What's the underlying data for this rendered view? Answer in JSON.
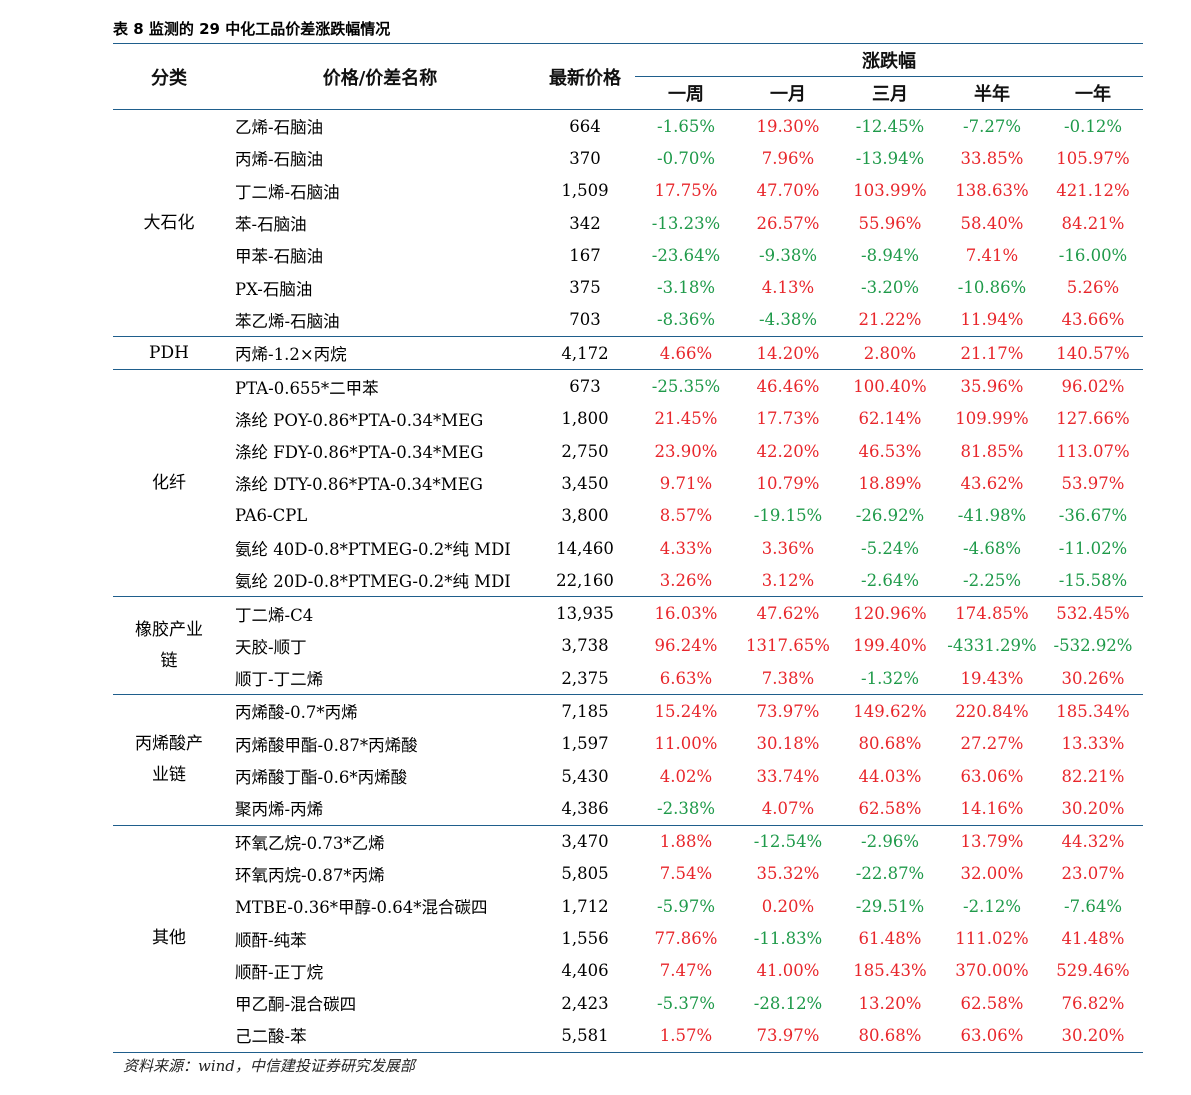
{
  "caption": "表 8 监测的 29 中化工品价差涨跌幅情况",
  "header": {
    "category": "分类",
    "name": "价格/价差名称",
    "price": "最新价格",
    "change_group": "涨跌幅",
    "periods": [
      "一周",
      "一月",
      "三月",
      "半年",
      "一年"
    ]
  },
  "colors": {
    "positive": "#e8262b",
    "negative": "#1f9a4a",
    "rule": "#1f5e8c"
  },
  "groups": [
    {
      "category": "大石化",
      "rows": [
        {
          "name": "乙烯-石脑油",
          "price": "664",
          "changes": [
            "-1.65%",
            "19.30%",
            "-12.45%",
            "-7.27%",
            "-0.12%"
          ]
        },
        {
          "name": "丙烯-石脑油",
          "price": "370",
          "changes": [
            "-0.70%",
            "7.96%",
            "-13.94%",
            "33.85%",
            "105.97%"
          ]
        },
        {
          "name": "丁二烯-石脑油",
          "price": "1,509",
          "changes": [
            "17.75%",
            "47.70%",
            "103.99%",
            "138.63%",
            "421.12%"
          ]
        },
        {
          "name": "苯-石脑油",
          "price": "342",
          "changes": [
            "-13.23%",
            "26.57%",
            "55.96%",
            "58.40%",
            "84.21%"
          ]
        },
        {
          "name": "甲苯-石脑油",
          "price": "167",
          "changes": [
            "-23.64%",
            "-9.38%",
            "-8.94%",
            "7.41%",
            "-16.00%"
          ]
        },
        {
          "name": "PX-石脑油",
          "price": "375",
          "changes": [
            "-3.18%",
            "4.13%",
            "-3.20%",
            "-10.86%",
            "5.26%"
          ]
        },
        {
          "name": "苯乙烯-石脑油",
          "price": "703",
          "changes": [
            "-8.36%",
            "-4.38%",
            "21.22%",
            "11.94%",
            "43.66%"
          ]
        }
      ]
    },
    {
      "category": "PDH",
      "rows": [
        {
          "name": "丙烯-1.2×丙烷",
          "price": "4,172",
          "changes": [
            "4.66%",
            "14.20%",
            "2.80%",
            "21.17%",
            "140.57%"
          ]
        }
      ]
    },
    {
      "category": "化纤",
      "rows": [
        {
          "name": "PTA-0.655*二甲苯",
          "price": "673",
          "changes": [
            "-25.35%",
            "46.46%",
            "100.40%",
            "35.96%",
            "96.02%"
          ]
        },
        {
          "name": "涤纶 POY-0.86*PTA-0.34*MEG",
          "price": "1,800",
          "changes": [
            "21.45%",
            "17.73%",
            "62.14%",
            "109.99%",
            "127.66%"
          ]
        },
        {
          "name": "涤纶 FDY-0.86*PTA-0.34*MEG",
          "price": "2,750",
          "changes": [
            "23.90%",
            "42.20%",
            "46.53%",
            "81.85%",
            "113.07%"
          ]
        },
        {
          "name": "涤纶 DTY-0.86*PTA-0.34*MEG",
          "price": "3,450",
          "changes": [
            "9.71%",
            "10.79%",
            "18.89%",
            "43.62%",
            "53.97%"
          ]
        },
        {
          "name": "PA6-CPL",
          "price": "3,800",
          "changes": [
            "8.57%",
            "-19.15%",
            "-26.92%",
            "-41.98%",
            "-36.67%"
          ]
        },
        {
          "name": "氨纶 40D-0.8*PTMEG-0.2*纯 MDI",
          "price": "14,460",
          "changes": [
            "4.33%",
            "3.36%",
            "-5.24%",
            "-4.68%",
            "-11.02%"
          ]
        },
        {
          "name": "氨纶 20D-0.8*PTMEG-0.2*纯 MDI",
          "price": "22,160",
          "changes": [
            "3.26%",
            "3.12%",
            "-2.64%",
            "-2.25%",
            "-15.58%"
          ]
        }
      ]
    },
    {
      "category": "橡胶产业链",
      "category_lines": [
        "橡胶产业",
        "链"
      ],
      "rows": [
        {
          "name": "丁二烯-C4",
          "price": "13,935",
          "changes": [
            "16.03%",
            "47.62%",
            "120.96%",
            "174.85%",
            "532.45%"
          ]
        },
        {
          "name": "天胶-顺丁",
          "price": "3,738",
          "changes": [
            "96.24%",
            "1317.65%",
            "199.40%",
            "-4331.29%",
            "-532.92%"
          ]
        },
        {
          "name": "顺丁-丁二烯",
          "price": "2,375",
          "changes": [
            "6.63%",
            "7.38%",
            "-1.32%",
            "19.43%",
            "30.26%"
          ]
        }
      ]
    },
    {
      "category": "丙烯酸产业链",
      "category_lines": [
        "丙烯酸产",
        "业链"
      ],
      "rows": [
        {
          "name": "丙烯酸-0.7*丙烯",
          "price": "7,185",
          "changes": [
            "15.24%",
            "73.97%",
            "149.62%",
            "220.84%",
            "185.34%"
          ]
        },
        {
          "name": "丙烯酸甲酯-0.87*丙烯酸",
          "price": "1,597",
          "changes": [
            "11.00%",
            "30.18%",
            "80.68%",
            "27.27%",
            "13.33%"
          ]
        },
        {
          "name": "丙烯酸丁酯-0.6*丙烯酸",
          "price": "5,430",
          "changes": [
            "4.02%",
            "33.74%",
            "44.03%",
            "63.06%",
            "82.21%"
          ]
        },
        {
          "name": "聚丙烯-丙烯",
          "price": "4,386",
          "changes": [
            "-2.38%",
            "4.07%",
            "62.58%",
            "14.16%",
            "30.20%"
          ]
        }
      ]
    },
    {
      "category": "其他",
      "rows": [
        {
          "name": "环氧乙烷-0.73*乙烯",
          "price": "3,470",
          "changes": [
            "1.88%",
            "-12.54%",
            "-2.96%",
            "13.79%",
            "44.32%"
          ]
        },
        {
          "name": "环氧丙烷-0.87*丙烯",
          "price": "5,805",
          "changes": [
            "7.54%",
            "35.32%",
            "-22.87%",
            "32.00%",
            "23.07%"
          ]
        },
        {
          "name": "MTBE-0.36*甲醇-0.64*混合碳四",
          "price": "1,712",
          "changes": [
            "-5.97%",
            "0.20%",
            "-29.51%",
            "-2.12%",
            "-7.64%"
          ]
        },
        {
          "name": "顺酐-纯苯",
          "price": "1,556",
          "changes": [
            "77.86%",
            "-11.83%",
            "61.48%",
            "111.02%",
            "41.48%"
          ]
        },
        {
          "name": "顺酐-正丁烷",
          "price": "4,406",
          "changes": [
            "7.47%",
            "41.00%",
            "185.43%",
            "370.00%",
            "529.46%"
          ]
        },
        {
          "name": "甲乙酮-混合碳四",
          "price": "2,423",
          "changes": [
            "-5.37%",
            "-28.12%",
            "13.20%",
            "62.58%",
            "76.82%"
          ]
        },
        {
          "name": "己二酸-苯",
          "price": "5,581",
          "changes": [
            "1.57%",
            "73.97%",
            "80.68%",
            "63.06%",
            "30.20%"
          ]
        }
      ]
    }
  ],
  "source": "资料来源：wind，中信建投证券研究发展部"
}
